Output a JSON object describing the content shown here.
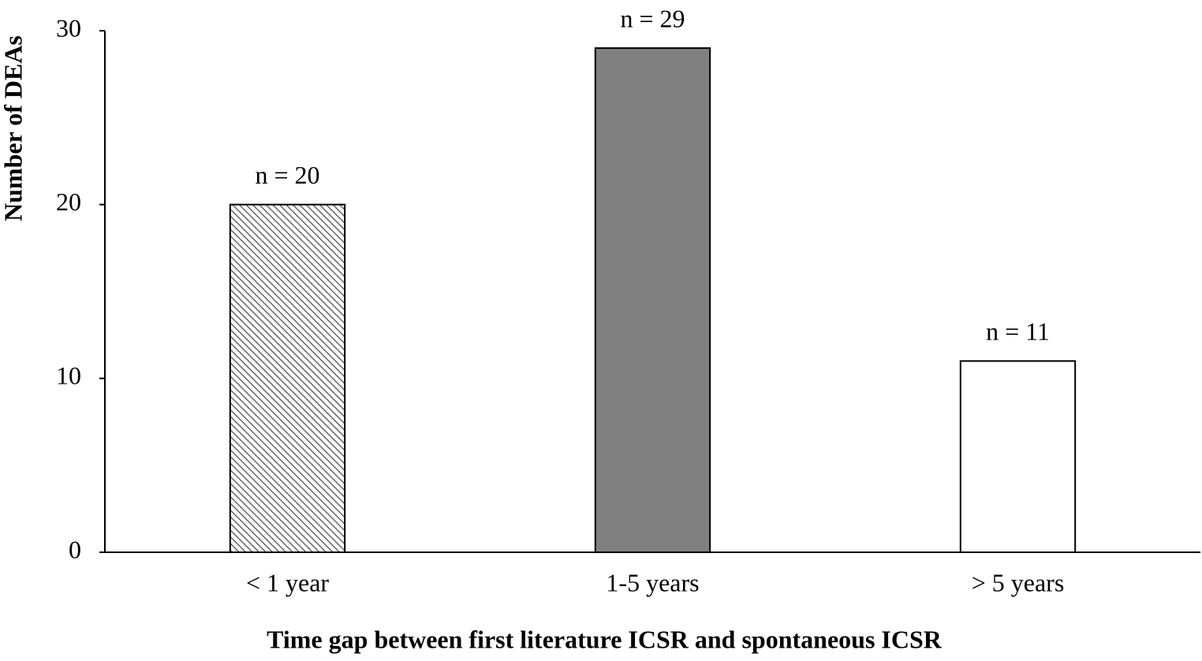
{
  "chart_data": {
    "type": "bar",
    "xlabel": "Time gap between first literature ICSR and spontaneous ICSR",
    "ylabel": "Number of DEAs",
    "categories": [
      "< 1 year",
      "1-5 years",
      "> 5 years"
    ],
    "values": [
      20,
      29,
      11
    ],
    "value_labels": [
      "n = 20",
      "n = 29",
      "n = 11"
    ],
    "colors": [
      "#808080",
      "#808080",
      "#ffffff"
    ],
    "hatch": [
      true,
      false,
      false
    ],
    "ylim": [
      0,
      30
    ],
    "yticks": [
      0,
      10,
      20,
      30
    ],
    "grid": false
  }
}
